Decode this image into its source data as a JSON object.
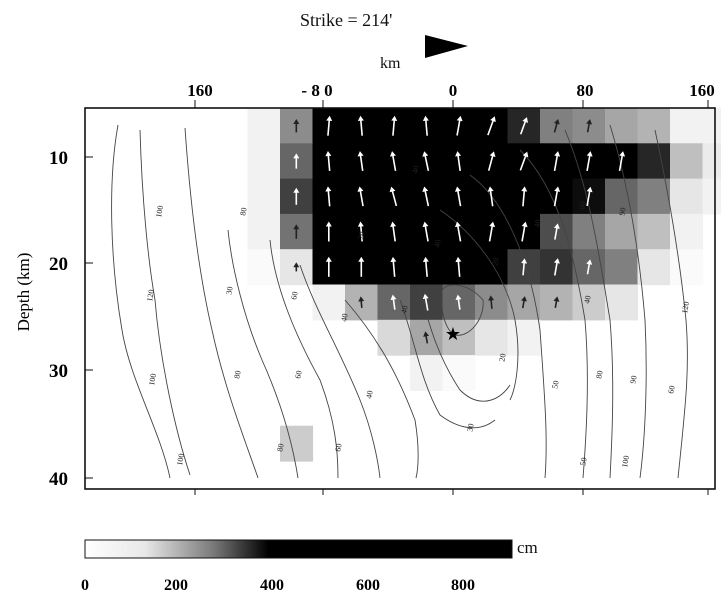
{
  "chart_data": {
    "type": "heatmap",
    "title": "Strike = 214'",
    "x_axis_label": "km",
    "x_tick_labels": [
      "160",
      "- 8 0",
      "0",
      "80",
      "160"
    ],
    "y_axis_label": "Depth (km)",
    "y_tick_labels": [
      "10",
      "20",
      "30",
      "40"
    ],
    "colorbar": {
      "unit": "cm",
      "tick_labels": [
        "0",
        "200",
        "400",
        "600",
        "800"
      ],
      "range": [
        0,
        900
      ],
      "colormap": "white-to-black"
    },
    "hypocenter": {
      "marker": "star",
      "x_km": 0,
      "depth_km": 26.5
    },
    "slip_grid": {
      "x_km_start": -116,
      "cell_km": 20,
      "depth_start_km": 5,
      "cell_depth_km": 3.3,
      "intensity_0_to_1": [
        [
          0,
          0,
          0,
          0,
          0,
          0.05,
          0.45,
          1,
          1,
          1,
          1,
          1,
          1,
          0.85,
          0.5,
          0.45,
          0.35,
          0.3,
          0.05,
          0.05,
          0,
          0,
          0,
          0,
          0,
          0,
          0,
          0,
          0,
          0
        ],
        [
          0,
          0,
          0,
          0,
          0,
          0.05,
          0.6,
          1,
          1,
          1,
          1,
          1,
          1,
          1,
          1,
          1,
          1,
          0.85,
          0.25,
          0.08,
          0,
          0,
          0,
          0,
          0,
          0,
          0,
          0,
          0,
          0
        ],
        [
          0,
          0,
          0,
          0,
          0,
          0.05,
          0.75,
          1,
          1,
          1,
          1,
          1,
          1,
          1,
          1,
          0.95,
          0.6,
          0.5,
          0.1,
          0.05,
          0,
          0,
          0,
          0,
          0,
          0,
          0,
          0,
          0,
          0
        ],
        [
          0,
          0,
          0,
          0,
          0,
          0.05,
          0.55,
          1,
          1,
          1,
          1,
          1,
          1,
          1,
          0.7,
          0.5,
          0.35,
          0.25,
          0.05,
          0,
          0,
          0,
          0,
          0,
          0,
          0,
          0,
          0,
          0,
          0
        ],
        [
          0,
          0,
          0,
          0,
          0,
          0.02,
          0.1,
          1,
          1,
          1,
          1,
          1,
          1,
          0.75,
          0.8,
          0.6,
          0.5,
          0.1,
          0.02,
          0,
          0,
          0,
          0,
          0,
          0,
          0,
          0,
          0,
          0,
          0
        ],
        [
          0,
          0,
          0,
          0,
          0,
          0,
          0,
          0.05,
          0.3,
          0.6,
          0.75,
          0.6,
          0.45,
          0.35,
          0.3,
          0.2,
          0.1,
          0,
          0,
          0,
          0,
          0,
          0,
          0,
          0,
          0,
          0,
          0,
          0,
          0
        ],
        [
          0,
          0,
          0,
          0,
          0,
          0,
          0,
          0,
          0,
          0.15,
          0.35,
          0.25,
          0.1,
          0.05,
          0,
          0,
          0,
          0,
          0,
          0,
          0,
          0,
          0,
          0,
          0,
          0,
          0,
          0,
          0,
          0
        ],
        [
          0,
          0,
          0,
          0,
          0,
          0,
          0,
          0,
          0,
          0,
          0.05,
          0.02,
          0,
          0,
          0,
          0,
          0,
          0,
          0,
          0,
          0,
          0,
          0,
          0,
          0,
          0,
          0,
          0,
          0,
          0
        ],
        [
          0,
          0,
          0,
          0,
          0,
          0,
          0,
          0,
          0,
          0,
          0,
          0,
          0,
          0,
          0,
          0,
          0,
          0,
          0,
          0,
          0,
          0,
          0,
          0,
          0,
          0,
          0,
          0,
          0,
          0
        ],
        [
          0,
          0,
          0,
          0,
          0,
          0,
          0.2,
          0,
          0,
          0,
          0,
          0,
          0,
          0,
          0,
          0,
          0,
          0,
          0,
          0,
          0,
          0,
          0,
          0,
          0,
          0,
          0,
          0,
          0,
          0
        ]
      ]
    },
    "contour_labels": [
      "100",
      "120",
      "100",
      "100",
      "80",
      "30",
      "80",
      "80",
      "60",
      "60",
      "60",
      "40",
      "40",
      "40",
      "40",
      "20",
      "20",
      "20",
      "30",
      "40",
      "40",
      "50",
      "50",
      "60",
      "80",
      "90",
      "90",
      "100",
      "120",
      "60",
      "40"
    ]
  },
  "contour_paths": [
    "M118 125 C108 180,110 260,122 330 C130 380,160 430,170 478",
    "M140 130 C142 200,148 260,155 300 C160 360,175 430,190 475",
    "M185 128 C190 200,198 270,212 330 C225 390,245 440,258 478",
    "M228 230 C232 270,245 320,262 360 C280 400,292 440,298 478",
    "M270 240 C275 290,298 340,320 380 C335 420,338 450,338 478",
    "M300 265 C315 310,340 350,360 400 C372 430,378 460,380 478",
    "M345 300 C380 340,400 380,415 420 C420 450,418 470,416 478",
    "M400 300 C415 340,420 380,440 415 C460 430,480 432,495 420",
    "M420 290 C430 330,440 360,460 390 C480 410,500 400,510 385",
    "M440 210 C470 230,505 270,515 320 C522 360,515 390,510 400",
    "M442 290 C450 280,470 285,483 300 C485 318,470 338,455 335 C445 330,440 310,442 290",
    "M470 175 C505 200,530 260,540 330 C545 400,548 440,545 478",
    "M520 150 C560 190,575 260,585 320 C590 380,586 440,583 478",
    "M565 130 C590 190,600 260,610 320 C615 380,612 440,610 478",
    "M610 125 C630 190,640 260,645 320 C648 380,645 440,640 478",
    "M655 130 C670 200,680 260,686 320 C690 370,685 410,678 478"
  ],
  "contour_label_pos": [
    [
      162,
      212
    ],
    [
      153,
      296
    ],
    [
      155,
      380
    ],
    [
      183,
      460
    ],
    [
      246,
      212
    ],
    [
      232,
      291
    ],
    [
      240,
      375
    ],
    [
      283,
      448
    ],
    [
      297,
      296
    ],
    [
      301,
      375
    ],
    [
      341,
      448
    ],
    [
      372,
      395
    ],
    [
      347,
      318
    ],
    [
      407,
      310
    ],
    [
      418,
      170
    ],
    [
      364,
      236
    ],
    [
      498,
      262
    ],
    [
      505,
      358
    ],
    [
      473,
      428
    ],
    [
      440,
      244
    ],
    [
      540,
      224
    ],
    [
      558,
      385
    ],
    [
      586,
      462
    ],
    [
      585,
      206
    ],
    [
      602,
      375
    ],
    [
      625,
      212
    ],
    [
      636,
      380
    ],
    [
      628,
      462
    ],
    [
      688,
      308
    ],
    [
      674,
      390
    ],
    [
      590,
      300
    ]
  ],
  "arrow_cells": [
    [
      0,
      6,
      0
    ],
    [
      0,
      7,
      5
    ],
    [
      0,
      8,
      -5
    ],
    [
      0,
      9,
      5
    ],
    [
      0,
      10,
      -5
    ],
    [
      0,
      11,
      10
    ],
    [
      0,
      12,
      20
    ],
    [
      0,
      13,
      20
    ],
    [
      0,
      14,
      15
    ],
    [
      0,
      15,
      10
    ],
    [
      1,
      6,
      0
    ],
    [
      1,
      7,
      -5
    ],
    [
      1,
      8,
      -8
    ],
    [
      1,
      9,
      -10
    ],
    [
      1,
      10,
      -12
    ],
    [
      1,
      11,
      -8
    ],
    [
      1,
      12,
      15
    ],
    [
      1,
      13,
      20
    ],
    [
      1,
      14,
      10
    ],
    [
      1,
      15,
      10
    ],
    [
      1,
      16,
      10
    ],
    [
      2,
      6,
      0
    ],
    [
      2,
      7,
      -5
    ],
    [
      2,
      8,
      -10
    ],
    [
      2,
      9,
      -15
    ],
    [
      2,
      10,
      -12
    ],
    [
      2,
      11,
      -10
    ],
    [
      2,
      12,
      -8
    ],
    [
      2,
      13,
      5
    ],
    [
      2,
      14,
      10
    ],
    [
      2,
      15,
      10
    ],
    [
      3,
      6,
      0
    ],
    [
      3,
      7,
      0
    ],
    [
      3,
      8,
      -5
    ],
    [
      3,
      9,
      -8
    ],
    [
      3,
      10,
      -10
    ],
    [
      3,
      11,
      -10
    ],
    [
      3,
      12,
      10
    ],
    [
      3,
      13,
      10
    ],
    [
      3,
      14,
      10
    ],
    [
      4,
      6,
      0
    ],
    [
      4,
      7,
      0
    ],
    [
      4,
      8,
      0
    ],
    [
      4,
      9,
      -5
    ],
    [
      4,
      10,
      -5
    ],
    [
      4,
      11,
      -5
    ],
    [
      4,
      13,
      5
    ],
    [
      4,
      14,
      10
    ],
    [
      4,
      15,
      10
    ],
    [
      5,
      8,
      -5
    ],
    [
      5,
      9,
      -8
    ],
    [
      5,
      10,
      -10
    ],
    [
      5,
      11,
      -8
    ],
    [
      5,
      12,
      -5
    ],
    [
      5,
      13,
      10
    ],
    [
      5,
      14,
      10
    ],
    [
      6,
      10,
      -10
    ]
  ]
}
